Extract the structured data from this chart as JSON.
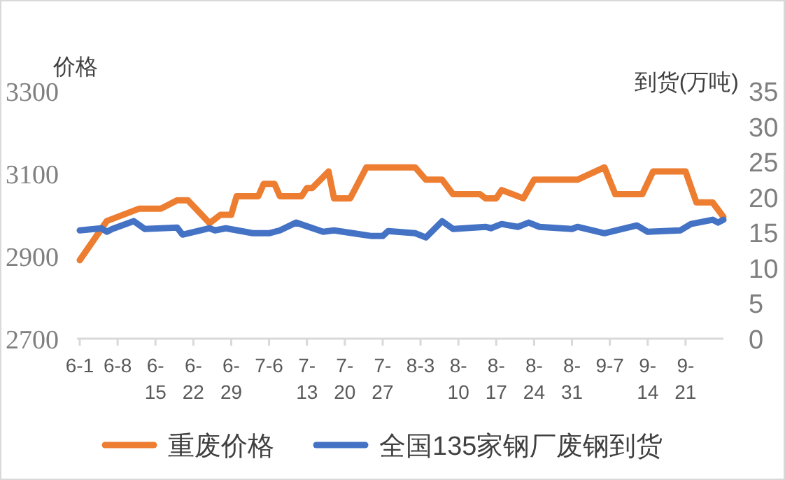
{
  "chart_data": {
    "type": "line",
    "ylabel": "价格",
    "y2label": "到货(万吨)",
    "xlim": [
      "--06-01",
      "--09-28"
    ],
    "xticks": [
      {
        "value": "--06-01",
        "label": "6-1"
      },
      {
        "value": "--06-08",
        "label": "6-8"
      },
      {
        "value": "--06-15",
        "label": "6-15"
      },
      {
        "value": "--06-22",
        "label": "6-22"
      },
      {
        "value": "--06-29",
        "label": "6-29"
      },
      {
        "value": "--07-06",
        "label": "7-6"
      },
      {
        "value": "--07-13",
        "label": "7-13"
      },
      {
        "value": "--07-20",
        "label": "7-20"
      },
      {
        "value": "--07-27",
        "label": "7-27"
      },
      {
        "value": "--08-03",
        "label": "8-3"
      },
      {
        "value": "--08-10",
        "label": "8-10"
      },
      {
        "value": "--08-17",
        "label": "8-17"
      },
      {
        "value": "--08-24",
        "label": "8-24"
      },
      {
        "value": "--08-31",
        "label": "8-31"
      },
      {
        "value": "--09-07",
        "label": "9-7"
      },
      {
        "value": "--09-14",
        "label": "9-14"
      },
      {
        "value": "--09-21",
        "label": "9-21"
      }
    ],
    "ylim": [
      2700,
      3300
    ],
    "yticks": [
      2700,
      2900,
      3100,
      3300
    ],
    "y2lim": [
      0,
      35
    ],
    "y2ticks": [
      0,
      5,
      10,
      15,
      20,
      25,
      30,
      35
    ],
    "legend": "bottom",
    "grid": false,
    "marker": "none",
    "line_style": "solid",
    "series": [
      {
        "name": "重废价格",
        "color": "#ed7d31",
        "x": [
          "--06-01",
          "--06-06",
          "--06-12",
          "--06-16",
          "--06-19",
          "--06-21",
          "--06-25",
          "--06-27",
          "--06-29",
          "--06-30",
          "--07-04",
          "--07-05",
          "--07-07",
          "--07-08",
          "--07-12",
          "--07-13",
          "--07-14",
          "--07-17",
          "--07-18",
          "--07-21",
          "--07-24",
          "--08-02",
          "--08-04",
          "--08-07",
          "--08-09",
          "--08-14",
          "--08-15",
          "--08-17",
          "--08-18",
          "--08-22",
          "--08-24",
          "--09-01",
          "--09-06",
          "--09-08",
          "--09-13",
          "--09-15",
          "--09-21",
          "--09-23",
          "--09-26",
          "--09-28"
        ],
        "values": [
          2890,
          2985,
          3015,
          3015,
          3035,
          3035,
          2980,
          3000,
          3000,
          3045,
          3045,
          3075,
          3075,
          3045,
          3045,
          3065,
          3065,
          3105,
          3040,
          3040,
          3115,
          3115,
          3085,
          3085,
          3050,
          3050,
          3040,
          3040,
          3060,
          3040,
          3085,
          3085,
          3115,
          3050,
          3050,
          3105,
          3105,
          3030,
          3030,
          2995
        ]
      },
      {
        "name": "全国135家钢厂废钢到货",
        "color": "#4472c4",
        "axis": "y2",
        "x": [
          "--06-01",
          "--06-05",
          "--06-06",
          "--06-07",
          "--06-11",
          "--06-13",
          "--06-19",
          "--06-20",
          "--06-25",
          "--06-26",
          "--06-28",
          "--07-03",
          "--07-06",
          "--07-08",
          "--07-11",
          "--07-16",
          "--07-18",
          "--07-25",
          "--07-27",
          "--07-28",
          "--08-02",
          "--08-04",
          "--08-07",
          "--08-09",
          "--08-15",
          "--08-16",
          "--08-18",
          "--08-21",
          "--08-23",
          "--08-25",
          "--08-31",
          "--09-01",
          "--09-06",
          "--09-12",
          "--09-14",
          "--09-20",
          "--09-22",
          "--09-26",
          "--09-27",
          "--09-28"
        ],
        "values": [
          15.3,
          15.6,
          15.1,
          15.5,
          16.6,
          15.5,
          15.7,
          14.7,
          15.6,
          15.3,
          15.6,
          14.9,
          14.9,
          15.3,
          16.4,
          15.1,
          15.3,
          14.5,
          14.5,
          15.2,
          14.9,
          14.3,
          16.6,
          15.5,
          15.8,
          15.6,
          16.2,
          15.8,
          16.4,
          15.8,
          15.5,
          15.8,
          14.9,
          16.0,
          15.1,
          15.3,
          16.2,
          16.8,
          16.4,
          16.8
        ]
      }
    ]
  }
}
